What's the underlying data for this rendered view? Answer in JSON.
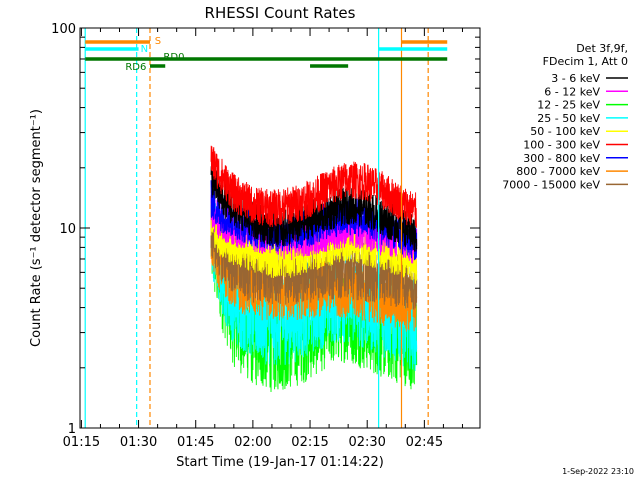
{
  "chart_data": {
    "type": "line",
    "title": "RHESSI Count Rates",
    "xlabel": "Start Time (19-Jan-17 01:14:22)",
    "ylabel": "Count Rate (s⁻¹ detector segment⁻¹)",
    "y_scale": "log",
    "ylim": [
      1,
      100
    ],
    "x_ticks": [
      "01:15",
      "01:30",
      "01:45",
      "02:00",
      "02:15",
      "02:30",
      "02:45"
    ],
    "y_ticks": [
      "1",
      "10",
      "100"
    ],
    "footer": "1-Sep-2022 23:10",
    "legend_header": [
      "Det 3f,9f,",
      "FDecim 1, Att 0"
    ],
    "time_range_min": [
      1.0,
      96.0
    ],
    "series": [
      {
        "name": "3 - 6 keV",
        "color": "#000000",
        "points": [
          [
            34,
            18
          ],
          [
            36,
            15
          ],
          [
            40,
            12.5
          ],
          [
            45,
            11
          ],
          [
            50,
            10
          ],
          [
            55,
            10
          ],
          [
            60,
            11
          ],
          [
            65,
            12
          ],
          [
            70,
            13
          ],
          [
            75,
            12.5
          ],
          [
            80,
            11
          ],
          [
            85,
            10
          ],
          [
            88,
            9
          ]
        ]
      },
      {
        "name": "6 - 12 keV",
        "color": "#ff00ff",
        "points": [
          [
            34,
            12
          ],
          [
            36,
            11
          ],
          [
            40,
            10
          ],
          [
            45,
            9.5
          ],
          [
            50,
            9
          ],
          [
            55,
            8.5
          ],
          [
            60,
            9
          ],
          [
            65,
            9.5
          ],
          [
            70,
            10
          ],
          [
            75,
            9.5
          ],
          [
            80,
            9
          ],
          [
            85,
            8.5
          ],
          [
            88,
            8
          ]
        ]
      },
      {
        "name": "12 - 25 keV",
        "color": "#00ff00",
        "points": [
          [
            34,
            9
          ],
          [
            36,
            6
          ],
          [
            40,
            3.5
          ],
          [
            45,
            2.8
          ],
          [
            50,
            2.6
          ],
          [
            55,
            2.7
          ],
          [
            60,
            3
          ],
          [
            65,
            3.5
          ],
          [
            70,
            3.7
          ],
          [
            75,
            3.3
          ],
          [
            80,
            3
          ],
          [
            85,
            2.8
          ],
          [
            88,
            2.6
          ]
        ]
      },
      {
        "name": "25 - 50 keV",
        "color": "#00ffff",
        "points": [
          [
            34,
            10
          ],
          [
            36,
            7
          ],
          [
            40,
            4.5
          ],
          [
            45,
            3.8
          ],
          [
            50,
            3.5
          ],
          [
            55,
            3.6
          ],
          [
            60,
            4
          ],
          [
            65,
            4.5
          ],
          [
            70,
            4.6
          ],
          [
            75,
            4.2
          ],
          [
            80,
            3.8
          ],
          [
            85,
            3.5
          ],
          [
            88,
            3.3
          ]
        ]
      },
      {
        "name": "50 - 100 keV",
        "color": "#ffff00",
        "points": [
          [
            34,
            11
          ],
          [
            36,
            9
          ],
          [
            40,
            8
          ],
          [
            45,
            7.5
          ],
          [
            50,
            7
          ],
          [
            55,
            7
          ],
          [
            60,
            7.5
          ],
          [
            65,
            8
          ],
          [
            70,
            8.5
          ],
          [
            75,
            8
          ],
          [
            80,
            7.5
          ],
          [
            85,
            7
          ],
          [
            88,
            6.5
          ]
        ]
      },
      {
        "name": "100 - 300 keV",
        "color": "#ff0000",
        "points": [
          [
            34,
            22
          ],
          [
            36,
            19
          ],
          [
            40,
            15
          ],
          [
            45,
            13
          ],
          [
            50,
            12.5
          ],
          [
            55,
            13
          ],
          [
            60,
            14
          ],
          [
            65,
            16
          ],
          [
            70,
            17.5
          ],
          [
            75,
            17
          ],
          [
            80,
            15
          ],
          [
            85,
            13
          ],
          [
            88,
            12
          ]
        ]
      },
      {
        "name": "300 - 800 keV",
        "color": "#0000ff",
        "points": [
          [
            34,
            14
          ],
          [
            36,
            12
          ],
          [
            40,
            11
          ],
          [
            45,
            10
          ],
          [
            50,
            9.5
          ],
          [
            55,
            9.5
          ],
          [
            60,
            10
          ],
          [
            65,
            11
          ],
          [
            70,
            11.5
          ],
          [
            75,
            11
          ],
          [
            80,
            10
          ],
          [
            85,
            9
          ],
          [
            88,
            8.5
          ]
        ]
      },
      {
        "name": "800 - 7000 keV",
        "color": "#ff8800",
        "points": [
          [
            34,
            9
          ],
          [
            36,
            7
          ],
          [
            40,
            5.5
          ],
          [
            45,
            5
          ],
          [
            50,
            4.8
          ],
          [
            55,
            4.8
          ],
          [
            60,
            5
          ],
          [
            65,
            5.2
          ],
          [
            70,
            5
          ],
          [
            75,
            4.8
          ],
          [
            80,
            4.5
          ],
          [
            85,
            4.3
          ],
          [
            88,
            4.2
          ]
        ]
      },
      {
        "name": "7000 - 15000 keV",
        "color": "#996633",
        "points": [
          [
            34,
            10
          ],
          [
            36,
            8
          ],
          [
            40,
            6.5
          ],
          [
            45,
            6
          ],
          [
            50,
            5.8
          ],
          [
            55,
            5.8
          ],
          [
            60,
            6
          ],
          [
            65,
            6.2
          ],
          [
            70,
            6.3
          ],
          [
            75,
            6
          ],
          [
            80,
            5.8
          ],
          [
            85,
            5.6
          ],
          [
            88,
            5.5
          ]
        ]
      }
    ],
    "flags": [
      {
        "label": "S",
        "color": "#ff8800",
        "segments": [
          [
            1,
            18
          ],
          [
            84,
            96
          ]
        ]
      },
      {
        "label": "N",
        "color": "#00ffff",
        "segments": [
          [
            1,
            15
          ],
          [
            78,
            96
          ]
        ]
      },
      {
        "label": "RD0",
        "color": "#007700",
        "segments": [
          [
            1,
            96
          ]
        ]
      },
      {
        "label": "RD6",
        "color": "#007700",
        "segments": [
          [
            18,
            22
          ],
          [
            60,
            70
          ]
        ]
      }
    ],
    "vlines": [
      {
        "t": 1.0,
        "color": "#00ffff",
        "style": "solid"
      },
      {
        "t": 14.5,
        "color": "#00ffff",
        "style": "dashed"
      },
      {
        "t": 18.0,
        "color": "#ff8800",
        "style": "dashed"
      },
      {
        "t": 78.0,
        "color": "#00ffff",
        "style": "solid"
      },
      {
        "t": 84.0,
        "color": "#ff8800",
        "style": "solid"
      },
      {
        "t": 91.0,
        "color": "#ff8800",
        "style": "dashed"
      }
    ]
  }
}
